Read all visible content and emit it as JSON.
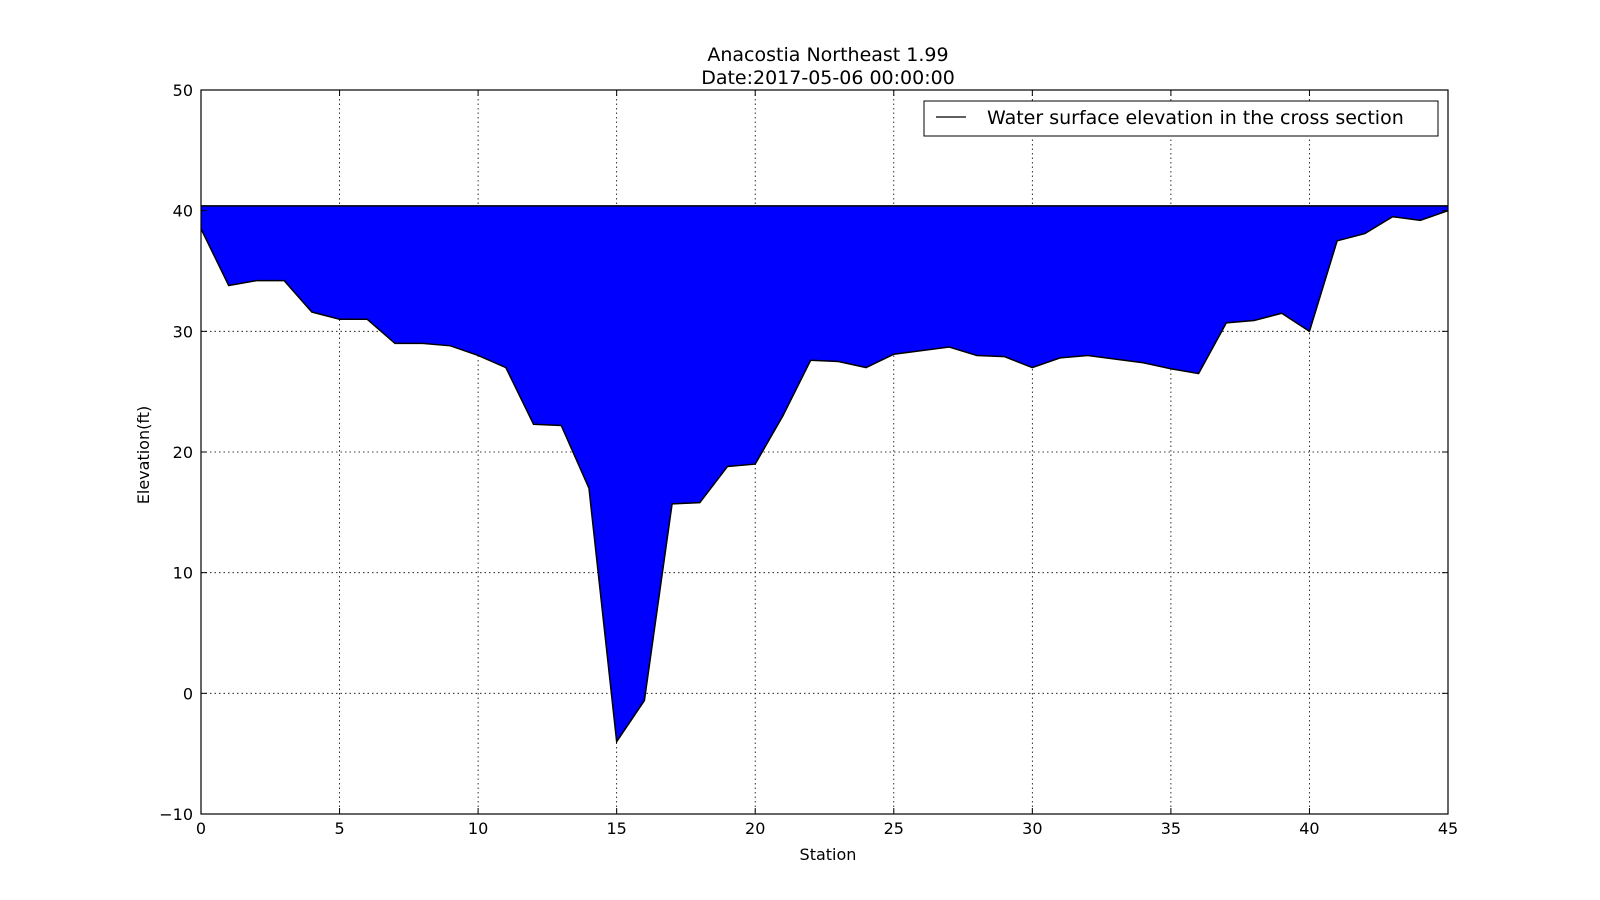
{
  "chart_data": {
    "type": "area",
    "title": "Anacostia Northeast 1.99",
    "subtitle": "Date:2017-05-06 00:00:00",
    "xlabel": "Station",
    "ylabel": "Elevation(ft)",
    "xlim": [
      0,
      45
    ],
    "ylim": [
      -10,
      50
    ],
    "xticks": [
      0,
      5,
      10,
      15,
      20,
      25,
      30,
      35,
      40,
      45
    ],
    "yticks": [
      -10,
      0,
      10,
      20,
      30,
      40,
      50
    ],
    "xtick_labels": [
      "0",
      "5",
      "10",
      "15",
      "20",
      "25",
      "30",
      "35",
      "40",
      "45"
    ],
    "ytick_labels": [
      "−10",
      "0",
      "10",
      "20",
      "30",
      "40",
      "50"
    ],
    "grid": true,
    "legend_position": "top-right",
    "legend": [
      "Water surface elevation in the cross section"
    ],
    "water_surface_elevation": 40.4,
    "fill_color": "#0000ff",
    "line_color": "#000000",
    "bed_profile": {
      "x": [
        0,
        1,
        2,
        3,
        4,
        5,
        6,
        7,
        8,
        9,
        10,
        11,
        12,
        13,
        14,
        15,
        16,
        17,
        18,
        19,
        20,
        21,
        22,
        23,
        24,
        25,
        26,
        27,
        28,
        29,
        30,
        31,
        32,
        33,
        34,
        35,
        36,
        37,
        38,
        39,
        40,
        41,
        42,
        43,
        44,
        45
      ],
      "y": [
        38.5,
        33.8,
        34.2,
        34.2,
        31.6,
        31.0,
        31.0,
        29.0,
        29.0,
        28.8,
        28.0,
        27.0,
        22.3,
        22.2,
        17.0,
        -4.0,
        -0.6,
        15.7,
        15.8,
        18.8,
        19.0,
        23.0,
        27.6,
        27.5,
        27.0,
        28.1,
        28.4,
        28.7,
        28.0,
        27.9,
        27.0,
        27.8,
        28.0,
        27.7,
        27.4,
        26.9,
        26.5,
        30.7,
        30.9,
        31.5,
        30.0,
        37.5,
        38.1,
        39.5,
        39.2,
        40.0
      ]
    }
  }
}
